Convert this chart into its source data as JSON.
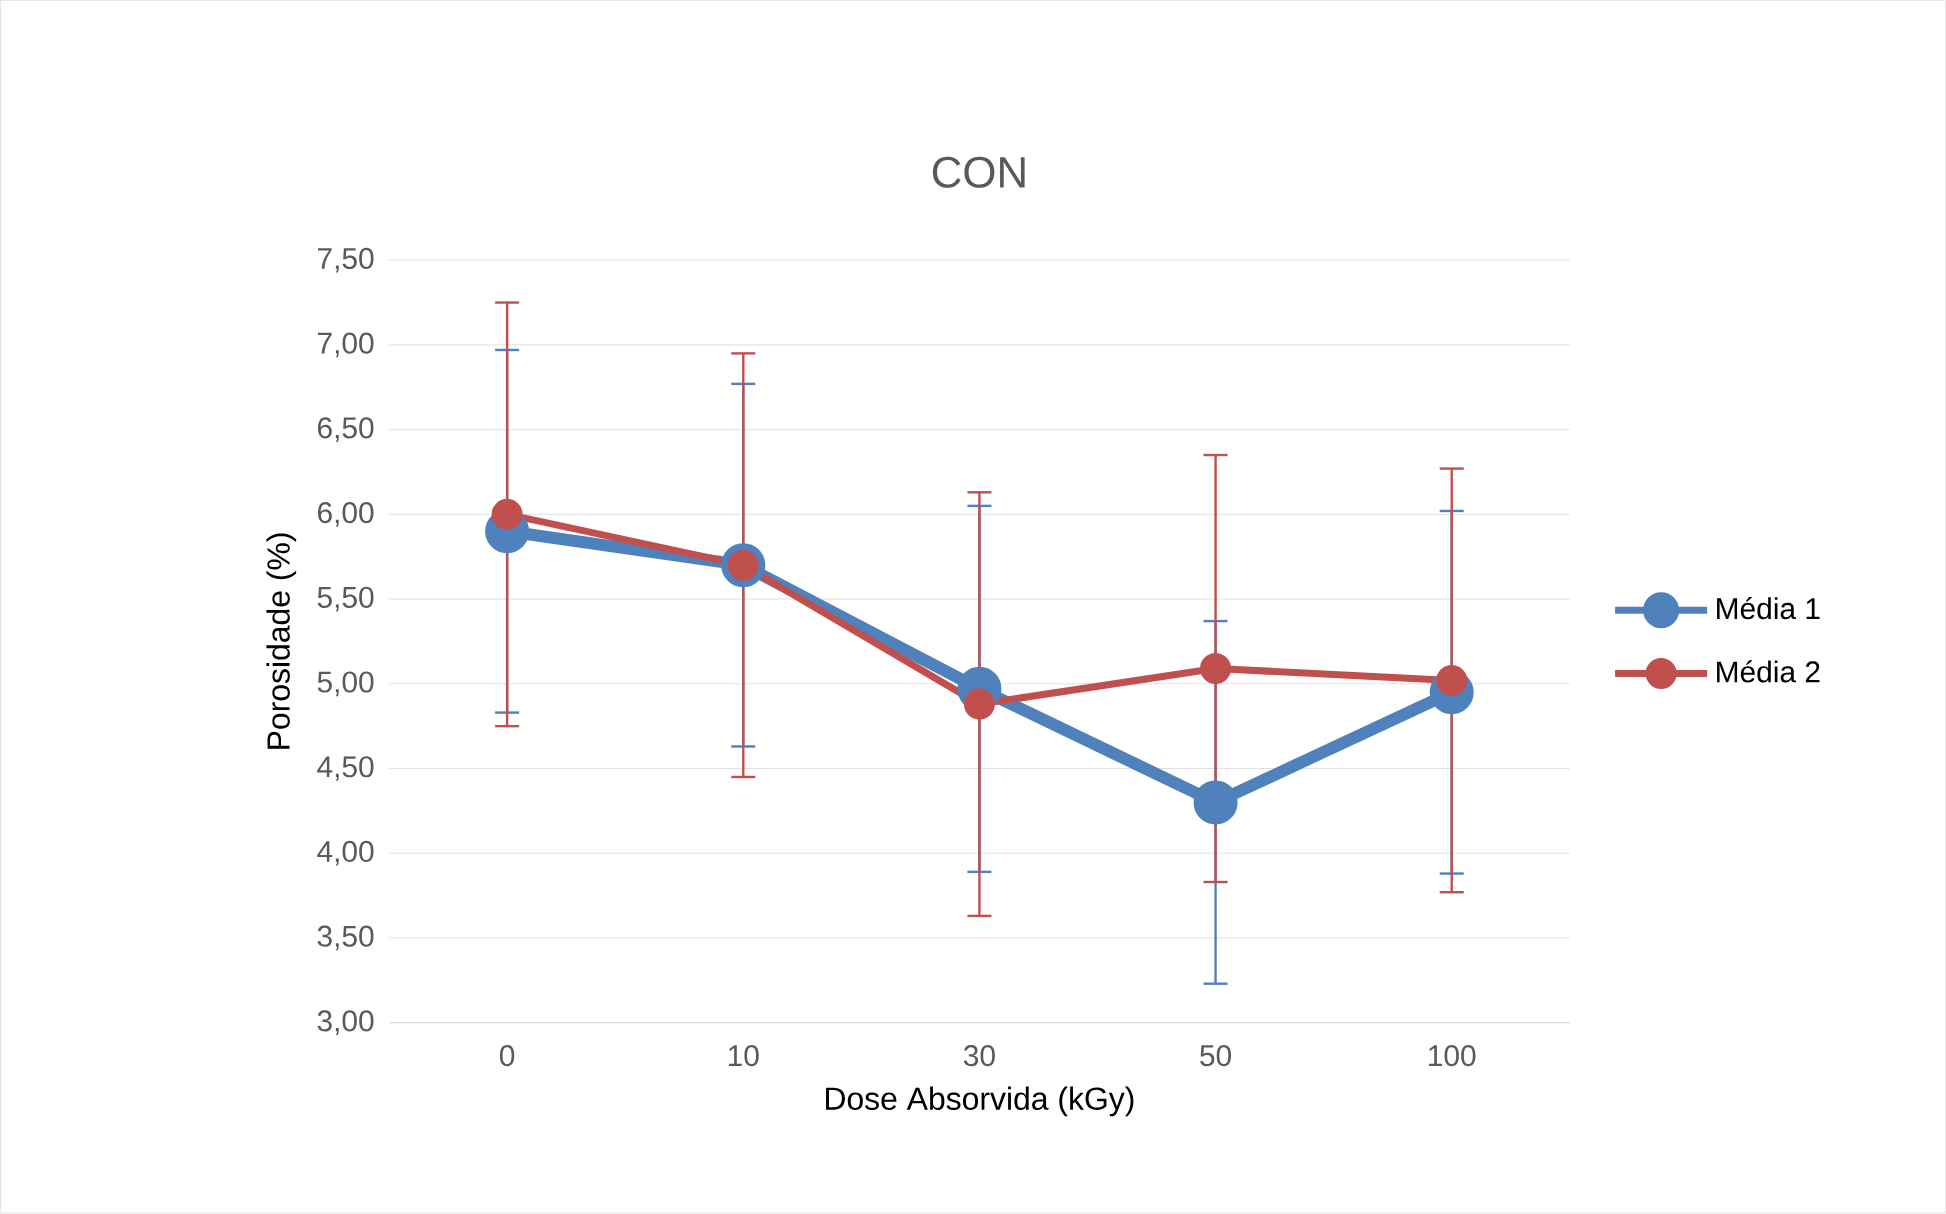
{
  "chart_data": {
    "type": "line",
    "title": "CON",
    "xlabel": "Dose Absorvida (kGy)",
    "ylabel": "Porosidade (%)",
    "categories": [
      "0",
      "10",
      "30",
      "50",
      "100"
    ],
    "series": [
      {
        "name": "Média 1",
        "color": "#4f81bd",
        "values": [
          5.9,
          5.7,
          4.97,
          4.3,
          4.95
        ],
        "errors": [
          1.07,
          1.07,
          1.08,
          1.07,
          1.07
        ]
      },
      {
        "name": "Média 2",
        "color": "#c0504d",
        "values": [
          6.0,
          5.7,
          4.88,
          5.09,
          5.02
        ],
        "errors": [
          1.25,
          1.25,
          1.25,
          1.26,
          1.25
        ]
      }
    ],
    "ylim": [
      3,
      7.5
    ],
    "yticks": [
      {
        "value": 3,
        "label": "3,00"
      },
      {
        "value": 3.5,
        "label": "3,50"
      },
      {
        "value": 4,
        "label": "4,00"
      },
      {
        "value": 4.5,
        "label": "4,50"
      },
      {
        "value": 5,
        "label": "5,00"
      },
      {
        "value": 5.5,
        "label": "5,50"
      },
      {
        "value": 6,
        "label": "6,00"
      },
      {
        "value": 6.5,
        "label": "6,50"
      },
      {
        "value": 7,
        "label": "7,00"
      },
      {
        "value": 7.5,
        "label": "7,50"
      }
    ],
    "grid": "y",
    "legend": "right",
    "marker": "circle",
    "line_style": "solid"
  }
}
